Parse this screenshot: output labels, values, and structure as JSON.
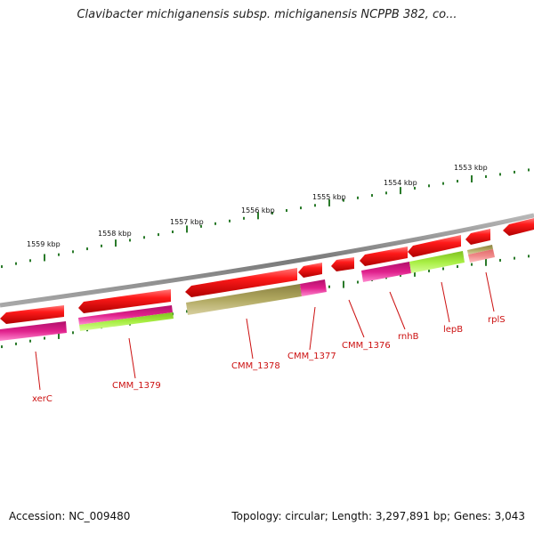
{
  "title": "Clavibacter michiganensis subsp. michiganensis NCPPB 382, co...",
  "footer": {
    "accession": "Accession: NC_009480",
    "topology": "Topology: circular; Length: 3,297,891 bp; Genes: 3,043"
  },
  "scale_labels": [
    "1559 kbp",
    "1558 kbp",
    "1557 kbp",
    "1556 kbp",
    "1555 kbp",
    "1554 kbp",
    "1553 kbp"
  ],
  "gene_labels": [
    "xerC",
    "CMM_1379",
    "CMM_1378",
    "CMM_1377",
    "CMM_1376",
    "rnhB",
    "lepB",
    "rplS"
  ],
  "colors": {
    "backbone": "#8a8a8a",
    "cds": "#ee1111",
    "gene_magenta": "#e0208c",
    "gene_green": "#a8ee44",
    "gene_olive": "#b0a860",
    "gene_pink": "#f08a8a",
    "tick": "#2a7a2a",
    "label": "#cc1111"
  }
}
